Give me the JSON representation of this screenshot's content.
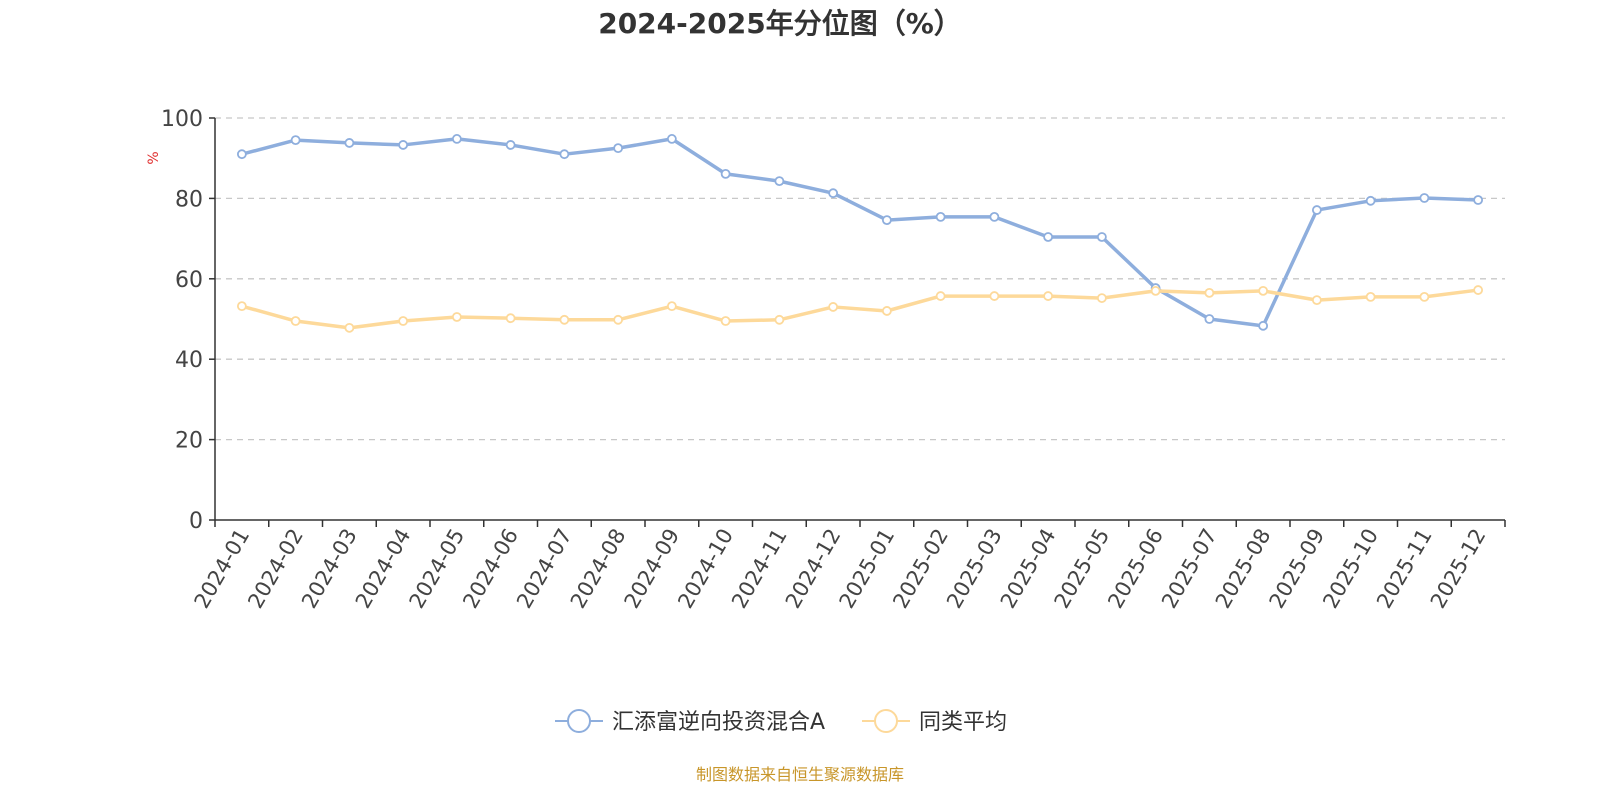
{
  "chart_data": {
    "type": "line",
    "title": "2024-2025年分位图（%）",
    "ylabel": "%",
    "xlabel": "",
    "ylim": [
      0,
      100
    ],
    "yticks": [
      0,
      20,
      40,
      60,
      80,
      100
    ],
    "grid": true,
    "legend_position": "bottom",
    "categories": [
      "2024-01",
      "2024-02",
      "2024-03",
      "2024-04",
      "2024-05",
      "2024-06",
      "2024-07",
      "2024-08",
      "2024-09",
      "2024-10",
      "2024-11",
      "2024-12",
      "2025-01",
      "2025-02",
      "2025-03",
      "2025-04",
      "2025-05",
      "2025-06",
      "2025-07",
      "2025-08",
      "2025-09",
      "2025-10",
      "2025-11",
      "2025-12"
    ],
    "series": [
      {
        "name": "汇添富逆向投资混合A",
        "color": "#8eaedd",
        "values": [
          91.0,
          94.5,
          93.8,
          93.3,
          94.8,
          93.3,
          91.0,
          92.5,
          94.8,
          86.1,
          84.3,
          81.3,
          74.6,
          75.4,
          75.4,
          70.4,
          70.4,
          57.7,
          50.0,
          48.3,
          77.1,
          79.4,
          80.1,
          79.6
        ]
      },
      {
        "name": "同类平均",
        "color": "#fdd99a",
        "values": [
          53.2,
          49.5,
          47.8,
          49.5,
          50.5,
          50.2,
          49.8,
          49.8,
          53.2,
          49.5,
          49.8,
          53.0,
          52.0,
          55.7,
          55.7,
          55.7,
          55.2,
          57.0,
          56.5,
          57.0,
          54.7,
          55.5,
          55.5,
          57.2
        ]
      }
    ]
  },
  "footer": "制图数据来自恒生聚源数据库"
}
